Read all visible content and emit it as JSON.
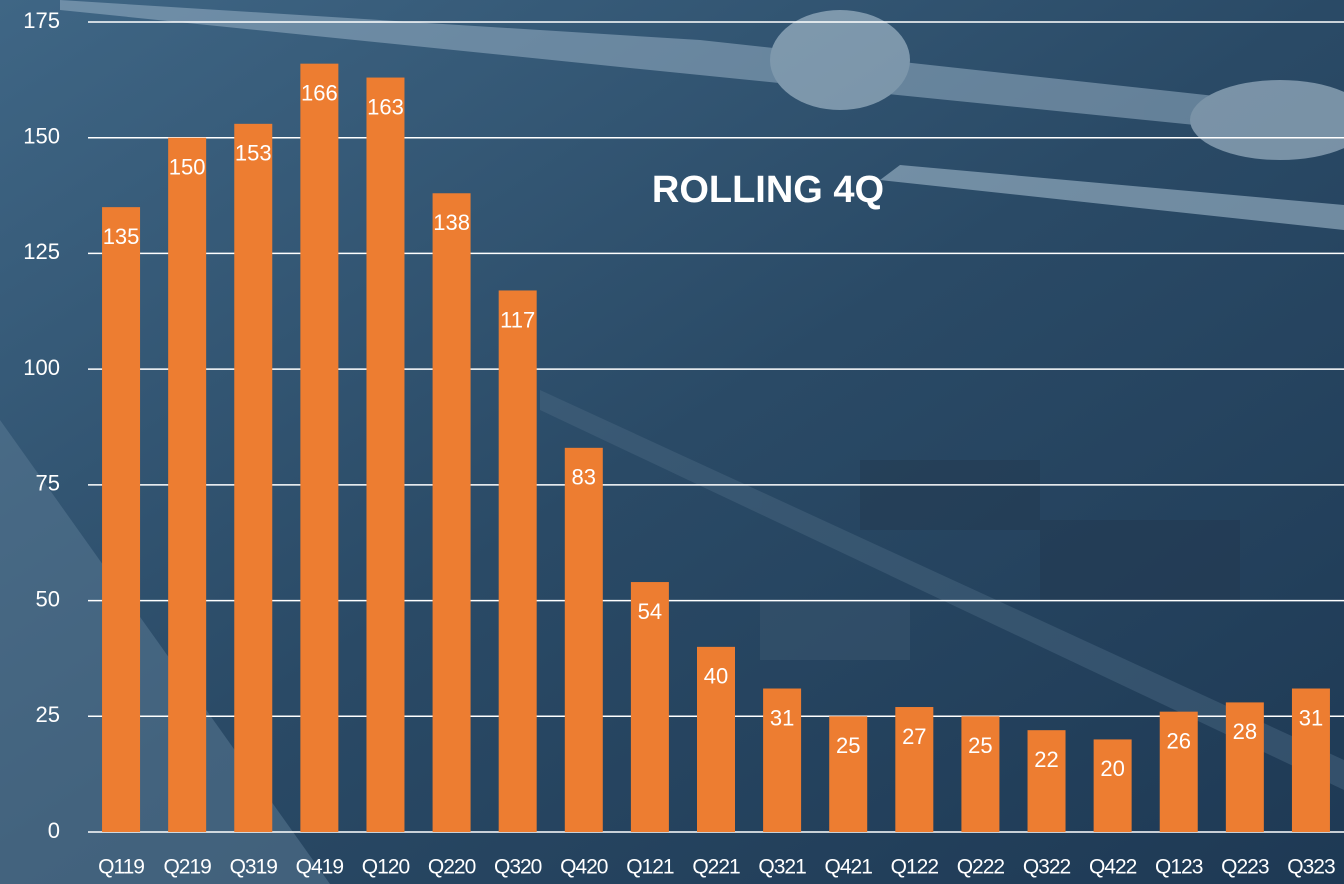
{
  "chart_data": {
    "type": "bar",
    "title": "ROLLING 4Q",
    "categories": [
      "Q119",
      "Q219",
      "Q319",
      "Q419",
      "Q120",
      "Q220",
      "Q320",
      "Q420",
      "Q121",
      "Q221",
      "Q321",
      "Q421",
      "Q122",
      "Q222",
      "Q322",
      "Q422",
      "Q123",
      "Q223",
      "Q323"
    ],
    "values": [
      135,
      150,
      153,
      166,
      163,
      138,
      117,
      83,
      54,
      40,
      31,
      25,
      27,
      25,
      22,
      20,
      26,
      28,
      31
    ],
    "color": "#ed7d31",
    "ylim": [
      0,
      175
    ],
    "yticks": [
      0,
      25,
      50,
      75,
      100,
      125,
      150,
      175
    ],
    "grid": true
  }
}
